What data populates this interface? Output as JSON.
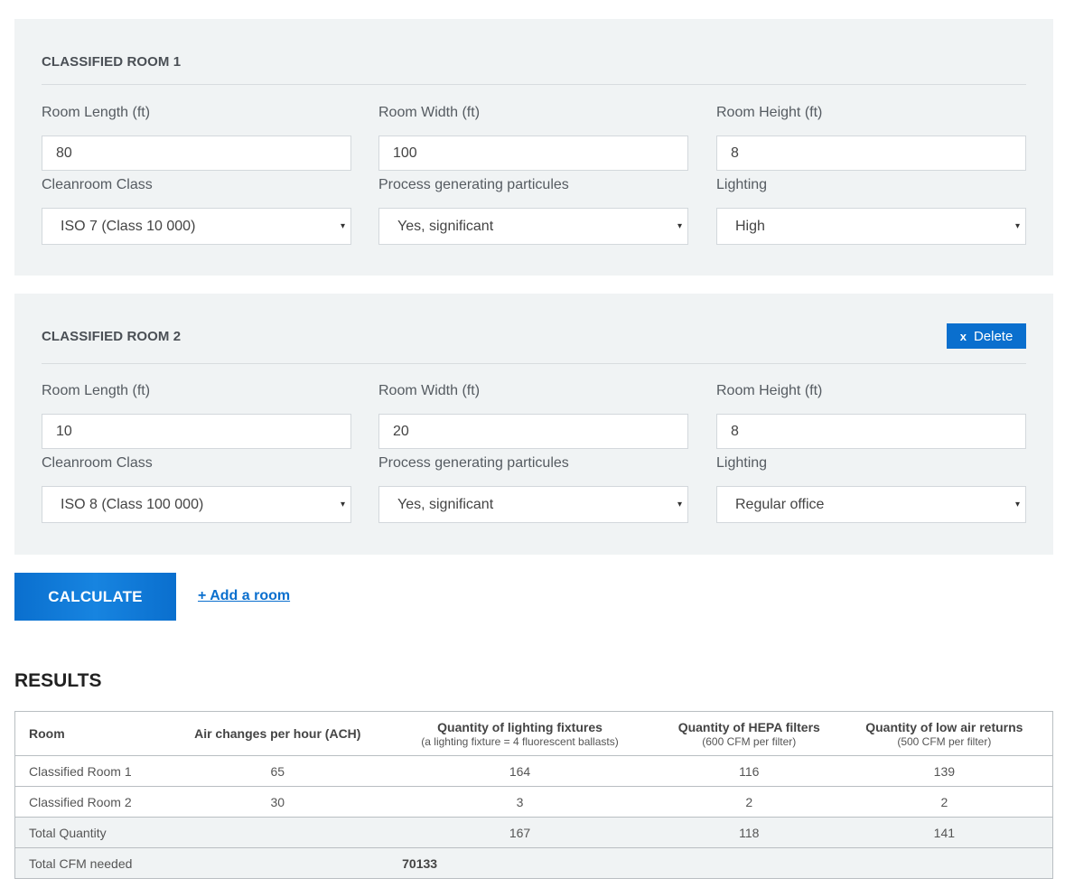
{
  "rooms": [
    {
      "title": "CLASSIFIED ROOM 1",
      "length_label": "Room Length (ft)",
      "length_value": "80",
      "width_label": "Room Width (ft)",
      "width_value": "100",
      "height_label": "Room Height (ft)",
      "height_value": "8",
      "class_label": "Cleanroom Class",
      "class_value": "ISO 7 (Class 10 000)",
      "process_label": "Process generating particules",
      "process_value": "Yes, significant",
      "lighting_label": "Lighting",
      "lighting_value": "High"
    },
    {
      "title": "CLASSIFIED ROOM 2",
      "delete_x": "x",
      "delete_label": "Delete",
      "length_label": "Room Length (ft)",
      "length_value": "10",
      "width_label": "Room Width (ft)",
      "width_value": "20",
      "height_label": "Room Height (ft)",
      "height_value": "8",
      "class_label": "Cleanroom Class",
      "class_value": "ISO 8 (Class 100 000)",
      "process_label": "Process generating particules",
      "process_value": "Yes, significant",
      "lighting_label": "Lighting",
      "lighting_value": "Regular office"
    }
  ],
  "actions": {
    "calculate_label": "CALCULATE",
    "add_room_label": "+ Add a room"
  },
  "results": {
    "title": "RESULTS",
    "headers": {
      "room": "Room",
      "ach": "Air changes per hour (ACH)",
      "lighting": "Quantity of lighting fixtures",
      "lighting_sub": "(a lighting fixture = 4 fluorescent ballasts)",
      "hepa": "Quantity of HEPA filters",
      "hepa_sub": "(600 CFM per filter)",
      "returns": "Quantity of low air returns",
      "returns_sub": "(500 CFM per filter)"
    },
    "rows": [
      {
        "room": "Classified Room 1",
        "ach": "65",
        "lighting": "164",
        "hepa": "116",
        "returns": "139"
      },
      {
        "room": "Classified Room 2",
        "ach": "30",
        "lighting": "3",
        "hepa": "2",
        "returns": "2"
      }
    ],
    "total": {
      "label": "Total Quantity",
      "lighting": "167",
      "hepa": "118",
      "returns": "141"
    },
    "cfm": {
      "label": "Total CFM needed",
      "value": "70133"
    }
  },
  "colors": {
    "accent": "#0a6fce",
    "panel_bg": "#f0f3f4"
  },
  "icons": {
    "select_caret": "▾"
  }
}
